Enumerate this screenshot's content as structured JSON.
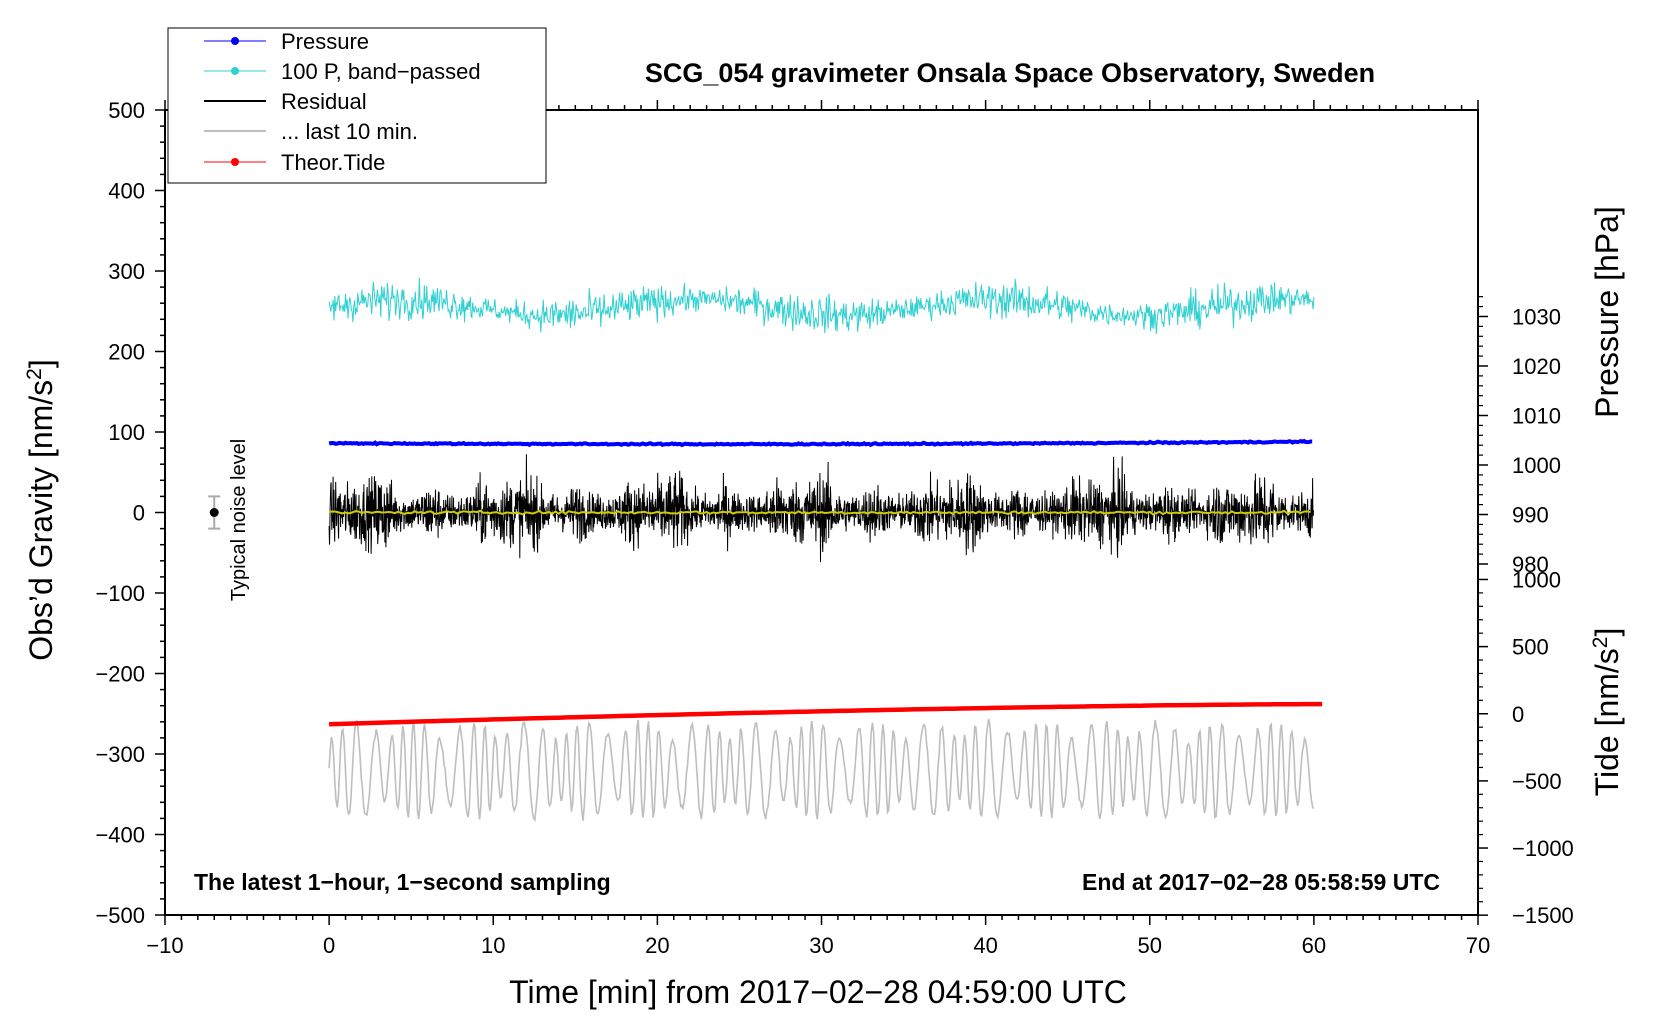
{
  "chart_data": {
    "type": "line",
    "title": "SCG_054 gravimeter Onsala Space Observatory, Sweden",
    "xlabel": "Time [min] from 2017−02−28 04:59:00 UTC",
    "ylabel_left_prefix": "Obs’d Gravity [nm/s",
    "ylabel_left_sup": "2",
    "ylabel_left_suffix": "]",
    "ylabel_right_pressure": "Pressure [hPa]",
    "ylabel_right_tide_prefix": "Tide [nm/s",
    "ylabel_right_tide_sup": "2",
    "ylabel_right_tide_suffix": "]",
    "xlim": [
      -10,
      70
    ],
    "ylim_left": [
      -500,
      500
    ],
    "pressure_axis": {
      "ticks": [
        980,
        990,
        1000,
        1010,
        1020,
        1030
      ]
    },
    "tide_axis": {
      "ticks": [
        -1500,
        -1000,
        -500,
        0,
        500,
        1000
      ]
    },
    "x_ticks": [
      -10,
      0,
      10,
      20,
      30,
      40,
      50,
      60,
      70
    ],
    "x_tick_labels": [
      "−10",
      "0",
      "10",
      "20",
      "30",
      "40",
      "50",
      "60",
      "70"
    ],
    "y_ticks": [
      -500,
      -400,
      -300,
      -200,
      -100,
      0,
      100,
      200,
      300,
      400,
      500
    ],
    "y_tick_labels": [
      "−500",
      "−400",
      "−300",
      "−200",
      "−100",
      "0",
      "100",
      "200",
      "300",
      "400",
      "500"
    ],
    "pressure_tick_labels": [
      "980",
      "990",
      "1000",
      "1010",
      "1020",
      "1030"
    ],
    "tide_tick_labels": [
      "−1500",
      "−1000",
      "−500",
      "0",
      "500",
      "1000"
    ],
    "annotations": {
      "bottom_left": "The latest 1−hour, 1−second sampling",
      "bottom_right": "End at 2017−02−28 05:58:59 UTC",
      "noise": "Typical noise level"
    },
    "noise_marker": {
      "x": -7,
      "y": 0,
      "err": 20
    },
    "legend": [
      {
        "name": "Pressure",
        "color": "#0000ff",
        "marker": true
      },
      {
        "name": "100 P, band−passed",
        "color": "#30d0d0",
        "marker": true
      },
      {
        "name": "Residual",
        "color": "#000000",
        "marker": false
      },
      {
        "name": "... last 10 min.",
        "color": "#bebebe",
        "marker": false
      },
      {
        "name": "Theor.Tide",
        "color": "#ff0000",
        "marker": true
      }
    ],
    "series": [
      {
        "name": "Pressure",
        "axis": "left",
        "color": "#0000ff",
        "x_range": [
          0,
          60
        ],
        "baseline": 86,
        "end": 88,
        "noise": 1.5
      },
      {
        "name": "100 P, band−passed",
        "axis": "left",
        "color": "#30d0d0",
        "x_range": [
          0,
          60
        ],
        "baseline": 255,
        "amplitude": 40
      },
      {
        "name": "Residual",
        "axis": "left",
        "color": "#000000",
        "x_range": [
          0,
          60
        ],
        "baseline": 0,
        "amplitude": 70
      },
      {
        "name": "... last 10 min.",
        "axis": "left",
        "color": "#bebebe",
        "x_range": [
          0,
          60
        ],
        "baseline": -320,
        "amplitude": 60
      },
      {
        "name": "Theor.Tide",
        "axis": "left",
        "color": "#ff0000",
        "x_range": [
          0,
          60.5
        ],
        "start": -263,
        "end": -238
      },
      {
        "name": "mean",
        "axis": "left",
        "color": "#cccc00",
        "x_range": [
          0,
          60
        ],
        "baseline": 0,
        "amplitude": 3
      }
    ]
  }
}
